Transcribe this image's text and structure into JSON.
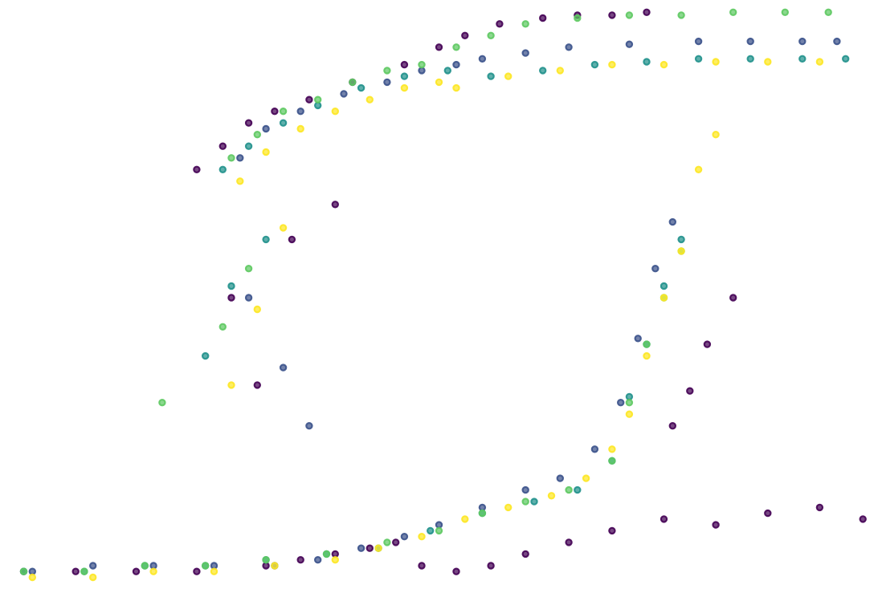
{
  "chart_data": {
    "type": "scatter",
    "title": "",
    "xlabel": "",
    "ylabel": "",
    "xlim": [
      0,
      1
    ],
    "ylim": [
      0,
      1
    ],
    "grid": false,
    "axes_visible": false,
    "legend": "none",
    "description_of_shape": "hysteresis loop: upper branch rises steeply near x=0.25 and plateaus near y=0.96; lower branch stays near y=0.03 until x=0.7 then rises steeply",
    "series": [
      {
        "name": "series-1",
        "color": "#440154",
        "x": [
          0.02,
          0.08,
          0.15,
          0.22,
          0.3,
          0.34,
          0.38,
          0.42,
          0.45,
          0.48,
          0.52,
          0.56,
          0.6,
          0.65,
          0.7,
          0.76,
          0.82,
          0.88,
          0.94,
          0.99,
          0.22,
          0.25,
          0.28,
          0.31,
          0.35,
          0.4,
          0.46,
          0.5,
          0.53,
          0.57,
          0.62,
          0.66,
          0.7,
          0.74,
          0.77,
          0.79,
          0.81,
          0.84,
          0.26,
          0.29,
          0.33,
          0.38
        ],
        "y": [
          0.03,
          0.03,
          0.03,
          0.03,
          0.04,
          0.05,
          0.06,
          0.07,
          0.08,
          0.04,
          0.03,
          0.04,
          0.06,
          0.08,
          0.1,
          0.12,
          0.11,
          0.13,
          0.14,
          0.12,
          0.72,
          0.76,
          0.8,
          0.82,
          0.84,
          0.87,
          0.9,
          0.93,
          0.95,
          0.97,
          0.98,
          0.985,
          0.985,
          0.99,
          0.28,
          0.34,
          0.42,
          0.5,
          0.5,
          0.35,
          0.6,
          0.66
        ]
      },
      {
        "name": "series-2",
        "color": "#3b528b",
        "x": [
          0.03,
          0.1,
          0.17,
          0.24,
          0.31,
          0.36,
          0.41,
          0.46,
          0.5,
          0.55,
          0.6,
          0.64,
          0.68,
          0.71,
          0.73,
          0.75,
          0.77,
          0.55,
          0.6,
          0.65,
          0.72,
          0.8,
          0.86,
          0.92,
          0.96,
          0.27,
          0.3,
          0.34,
          0.39,
          0.44,
          0.48,
          0.52,
          0.28,
          0.32,
          0.35
        ],
        "y": [
          0.03,
          0.04,
          0.04,
          0.04,
          0.04,
          0.05,
          0.07,
          0.09,
          0.11,
          0.14,
          0.17,
          0.19,
          0.24,
          0.32,
          0.43,
          0.55,
          0.63,
          0.91,
          0.92,
          0.93,
          0.935,
          0.94,
          0.94,
          0.94,
          0.94,
          0.74,
          0.79,
          0.82,
          0.85,
          0.87,
          0.89,
          0.9,
          0.5,
          0.38,
          0.28
        ]
      },
      {
        "name": "series-3",
        "color": "#21918c",
        "x": [
          0.02,
          0.09,
          0.16,
          0.23,
          0.3,
          0.37,
          0.43,
          0.49,
          0.55,
          0.61,
          0.66,
          0.7,
          0.72,
          0.74,
          0.76,
          0.78,
          0.56,
          0.62,
          0.68,
          0.74,
          0.8,
          0.86,
          0.92,
          0.97,
          0.25,
          0.28,
          0.32,
          0.36,
          0.41,
          0.46,
          0.51,
          0.23,
          0.26,
          0.3
        ],
        "y": [
          0.03,
          0.03,
          0.04,
          0.04,
          0.05,
          0.06,
          0.07,
          0.1,
          0.13,
          0.15,
          0.17,
          0.22,
          0.33,
          0.42,
          0.52,
          0.6,
          0.88,
          0.89,
          0.9,
          0.905,
          0.91,
          0.91,
          0.91,
          0.91,
          0.72,
          0.76,
          0.8,
          0.83,
          0.86,
          0.88,
          0.89,
          0.4,
          0.52,
          0.6
        ]
      },
      {
        "name": "series-4",
        "color": "#5ec962",
        "x": [
          0.02,
          0.09,
          0.16,
          0.23,
          0.3,
          0.37,
          0.44,
          0.5,
          0.55,
          0.6,
          0.65,
          0.7,
          0.72,
          0.74,
          0.76,
          0.78,
          0.48,
          0.52,
          0.56,
          0.6,
          0.66,
          0.72,
          0.78,
          0.84,
          0.9,
          0.95,
          0.26,
          0.29,
          0.32,
          0.36,
          0.4,
          0.44,
          0.25,
          0.28,
          0.18
        ],
        "y": [
          0.03,
          0.03,
          0.04,
          0.04,
          0.05,
          0.06,
          0.08,
          0.1,
          0.13,
          0.15,
          0.17,
          0.22,
          0.32,
          0.42,
          0.5,
          0.58,
          0.9,
          0.93,
          0.95,
          0.97,
          0.98,
          0.985,
          0.985,
          0.99,
          0.99,
          0.99,
          0.74,
          0.78,
          0.82,
          0.84,
          0.87,
          0.89,
          0.45,
          0.55,
          0.32
        ]
      },
      {
        "name": "series-5",
        "color": "#fde725",
        "x": [
          0.03,
          0.1,
          0.17,
          0.24,
          0.31,
          0.38,
          0.43,
          0.48,
          0.53,
          0.58,
          0.63,
          0.67,
          0.7,
          0.72,
          0.74,
          0.76,
          0.78,
          0.52,
          0.58,
          0.64,
          0.7,
          0.76,
          0.82,
          0.88,
          0.94,
          0.27,
          0.3,
          0.34,
          0.38,
          0.42,
          0.46,
          0.5,
          0.26,
          0.29,
          0.32,
          0.8,
          0.82
        ],
        "y": [
          0.02,
          0.02,
          0.03,
          0.03,
          0.04,
          0.05,
          0.07,
          0.09,
          0.12,
          0.14,
          0.16,
          0.19,
          0.24,
          0.3,
          0.4,
          0.5,
          0.58,
          0.86,
          0.88,
          0.89,
          0.9,
          0.9,
          0.905,
          0.905,
          0.905,
          0.7,
          0.75,
          0.79,
          0.82,
          0.84,
          0.86,
          0.87,
          0.35,
          0.48,
          0.62,
          0.72,
          0.78
        ]
      }
    ]
  }
}
